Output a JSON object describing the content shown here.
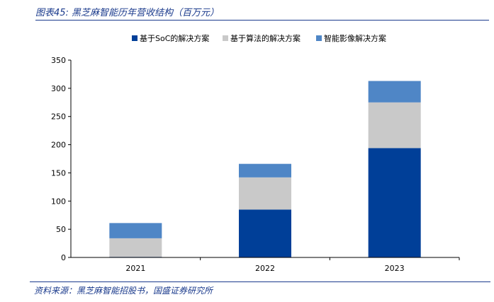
{
  "figure": {
    "title": "图表45: 黑芝麻智能历年营收结构（百万元）",
    "source": "资料来源：黑芝麻智能招股书，国盛证券研究所"
  },
  "chart_data": {
    "type": "bar",
    "stacked": true,
    "categories": [
      "2021",
      "2022",
      "2023"
    ],
    "series": [
      {
        "name": "基于SoC的解决方案",
        "color": "#003f98",
        "values": [
          1,
          85,
          194
        ]
      },
      {
        "name": "基于算法的解决方案",
        "color": "#c9c9c9",
        "values": [
          33,
          57,
          81
        ]
      },
      {
        "name": "智能影像解决方案",
        "color": "#4f86c6",
        "values": [
          27,
          24,
          38
        ]
      }
    ],
    "yticks": [
      "0",
      "50",
      "100",
      "150",
      "200",
      "250",
      "300",
      "350"
    ],
    "ylim": [
      0,
      350
    ],
    "legend_position": "top",
    "grid": false
  }
}
